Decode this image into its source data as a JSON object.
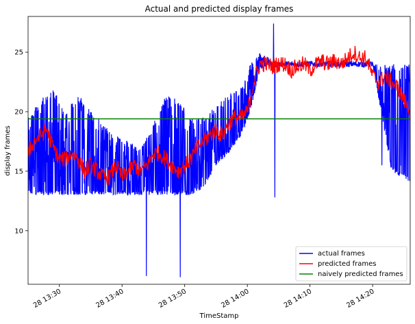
{
  "chart_data": {
    "type": "line",
    "title": "Actual and predicted display frames",
    "xlabel": "TimeStamp",
    "ylabel": "display frames",
    "x_axis": {
      "type": "time",
      "range": [
        "28 13:25:00",
        "28 14:26:00"
      ],
      "ticks": [
        {
          "t": "28 13:30",
          "minutes": 5
        },
        {
          "t": "28 13:40",
          "minutes": 15
        },
        {
          "t": "28 13:50",
          "minutes": 25
        },
        {
          "t": "28 14:00",
          "minutes": 35
        },
        {
          "t": "28 14:10",
          "minutes": 45
        },
        {
          "t": "28 14:20",
          "minutes": 55
        }
      ]
    },
    "y_axis": {
      "range": [
        5.5,
        28
      ],
      "ticks": [
        10,
        15,
        20,
        25
      ]
    },
    "grid": false,
    "legend": {
      "placement": "lower-right"
    },
    "series": [
      {
        "name": "actual frames",
        "color": "#0000ff",
        "style": "noisy-band",
        "trend": [
          [
            0.0,
            13.0,
            19.5
          ],
          [
            2.0,
            13.0,
            21.0
          ],
          [
            4.0,
            13.0,
            22.0
          ],
          [
            6.0,
            13.0,
            20.0
          ],
          [
            8.0,
            13.0,
            21.5
          ],
          [
            10.0,
            13.0,
            20.0
          ],
          [
            12.0,
            13.0,
            19.0
          ],
          [
            14.0,
            13.0,
            18.0
          ],
          [
            16.0,
            13.0,
            17.5
          ],
          [
            18.0,
            13.0,
            17.0
          ],
          [
            20.0,
            13.0,
            19.0
          ],
          [
            22.0,
            13.0,
            21.5
          ],
          [
            24.0,
            13.0,
            21.0
          ],
          [
            26.0,
            13.0,
            19.5
          ],
          [
            28.0,
            13.5,
            19.5
          ],
          [
            30.0,
            15.5,
            20.5
          ],
          [
            32.0,
            16.5,
            21.5
          ],
          [
            34.0,
            18.0,
            22.0
          ],
          [
            35.5,
            20.0,
            24.0
          ],
          [
            37.0,
            23.5,
            25.0
          ],
          [
            40.0,
            24.0,
            24.0
          ],
          [
            55.0,
            24.0,
            24.0
          ],
          [
            58.0,
            15.0,
            24.0
          ],
          [
            61.0,
            14.0,
            24.0
          ]
        ],
        "spikes": [
          {
            "x": 18.9,
            "y": 6.2
          },
          {
            "x": 24.3,
            "y": 6.1
          },
          {
            "x": 39.2,
            "y": 27.4
          },
          {
            "x": 39.4,
            "y": 12.8
          },
          {
            "x": 34.6,
            "y": 18.7
          },
          {
            "x": 56.5,
            "y": 15.5
          }
        ]
      },
      {
        "name": "predicted frames",
        "color": "#ff0000",
        "style": "noisy-line",
        "points": [
          [
            0.0,
            16.5
          ],
          [
            1.0,
            17.5
          ],
          [
            2.0,
            18.0
          ],
          [
            3.0,
            18.5
          ],
          [
            4.0,
            17.0
          ],
          [
            5.0,
            16.0
          ],
          [
            6.0,
            16.0
          ],
          [
            7.0,
            16.5
          ],
          [
            8.0,
            16.0
          ],
          [
            9.0,
            15.0
          ],
          [
            10.0,
            15.5
          ],
          [
            11.0,
            15.0
          ],
          [
            12.0,
            14.5
          ],
          [
            13.0,
            14.5
          ],
          [
            14.0,
            15.5
          ],
          [
            15.0,
            14.5
          ],
          [
            16.0,
            15.0
          ],
          [
            17.0,
            15.5
          ],
          [
            18.0,
            15.0
          ],
          [
            19.0,
            15.5
          ],
          [
            20.0,
            16.5
          ],
          [
            21.0,
            16.5
          ],
          [
            22.0,
            16.0
          ],
          [
            23.0,
            15.5
          ],
          [
            24.0,
            15.0
          ],
          [
            25.0,
            15.5
          ],
          [
            26.0,
            16.0
          ],
          [
            27.0,
            17.0
          ],
          [
            28.0,
            17.5
          ],
          [
            29.0,
            18.0
          ],
          [
            30.0,
            18.5
          ],
          [
            31.0,
            18.0
          ],
          [
            32.0,
            19.0
          ],
          [
            33.0,
            19.5
          ],
          [
            34.0,
            19.5
          ],
          [
            35.0,
            20.0
          ],
          [
            36.0,
            22.5
          ],
          [
            37.0,
            24.0
          ],
          [
            38.0,
            24.0
          ],
          [
            39.0,
            23.8
          ],
          [
            40.0,
            24.0
          ],
          [
            41.0,
            24.0
          ],
          [
            42.0,
            23.5
          ],
          [
            43.0,
            23.8
          ],
          [
            44.0,
            24.0
          ],
          [
            45.0,
            23.5
          ],
          [
            46.0,
            24.0
          ],
          [
            47.0,
            24.2
          ],
          [
            48.0,
            24.0
          ],
          [
            49.0,
            24.3
          ],
          [
            50.0,
            24.0
          ],
          [
            51.0,
            24.5
          ],
          [
            52.0,
            25.0
          ],
          [
            53.0,
            24.5
          ],
          [
            54.0,
            24.5
          ],
          [
            55.0,
            23.0
          ],
          [
            56.0,
            22.5
          ],
          [
            57.0,
            23.0
          ],
          [
            58.0,
            22.5
          ],
          [
            59.0,
            22.0
          ],
          [
            60.0,
            21.0
          ],
          [
            61.0,
            20.0
          ]
        ]
      },
      {
        "name": "naively predicted frames",
        "color": "#008000",
        "style": "constant",
        "value": 19.4
      }
    ]
  }
}
